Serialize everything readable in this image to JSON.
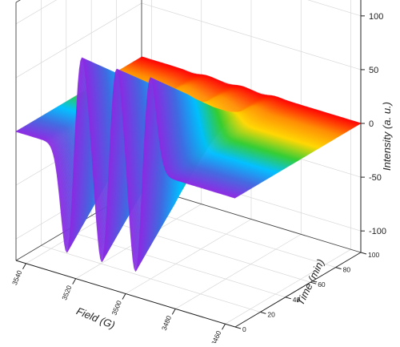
{
  "chart_data": {
    "type": "surface-3d",
    "title": "",
    "axes": {
      "field": {
        "label": "Field (G)",
        "range": [
          3456,
          3544
        ],
        "reversed": true,
        "ticks": [
          3540,
          3520,
          3500,
          3480,
          3460
        ],
        "tick_labels": [
          "3540",
          "3520",
          "3500",
          "3480",
          "3460"
        ]
      },
      "time": {
        "label": "Time (min)",
        "range": [
          0,
          100
        ],
        "ticks": [
          0,
          20,
          40,
          60,
          80,
          100
        ],
        "tick_labels": [
          "0",
          "20",
          "40",
          "60",
          "80",
          "100"
        ]
      },
      "intensity": {
        "label": "Intensity (a. u.)",
        "range": [
          -120,
          120
        ],
        "ticks": [
          100,
          50,
          0,
          -50,
          -100
        ],
        "tick_labels": [
          "100",
          "50",
          "0",
          "-50",
          "-100"
        ]
      }
    },
    "surface": {
      "colormap": "rainbow",
      "colormap_by": "time",
      "colormap_stops": [
        "#8a2be2",
        "#4169e1",
        "#00bfff",
        "#32cd32",
        "#ffd700",
        "#ff8c00",
        "#ff0000"
      ],
      "time_samples": [
        0,
        5,
        10,
        15,
        20,
        25,
        30,
        35,
        40,
        45,
        50,
        55,
        60,
        65,
        70,
        75,
        80,
        85,
        90,
        95,
        100
      ],
      "amplitude_vs_time": [
        1.0,
        0.93,
        0.86,
        0.79,
        0.72,
        0.65,
        0.58,
        0.5,
        0.43,
        0.36,
        0.29,
        0.23,
        0.17,
        0.12,
        0.08,
        0.05,
        0.04,
        0.03,
        0.02,
        0.015,
        0.01
      ],
      "lines": [
        {
          "center": 3520.5,
          "width": 3.1
        },
        {
          "center": 3506.5,
          "width": 3.1
        },
        {
          "center": 3493.0,
          "width": 3.1
        }
      ],
      "peak_intensity_t0": 88,
      "trough_intensity_t0": -98
    }
  }
}
